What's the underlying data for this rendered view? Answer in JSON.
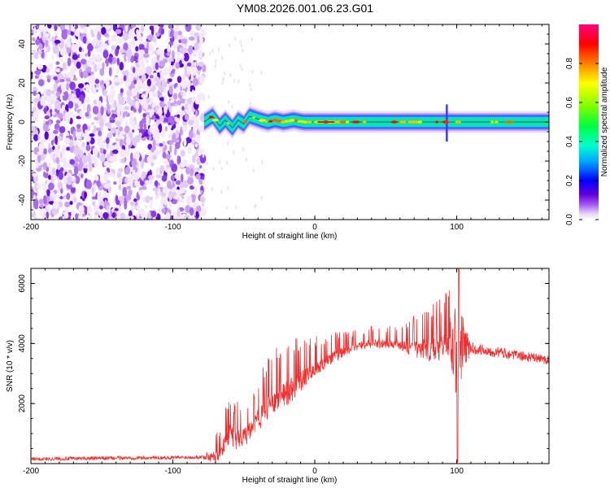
{
  "title": "YM08.2026.001.06.23.G01",
  "chart_data": [
    {
      "type": "heatmap",
      "name": "spectrogram",
      "xlabel": "Height of straight line (km)",
      "ylabel": "Frequency (Hz)",
      "xlim": [
        -200,
        165
      ],
      "ylim": [
        -50,
        50
      ],
      "xticks": [
        -200,
        -100,
        0,
        100
      ],
      "xtick_labels": [
        "-200",
        "-100",
        "0",
        "100"
      ],
      "yticks": [
        -40,
        -20,
        0,
        20,
        40
      ],
      "ytick_labels": [
        "-40",
        "-20",
        "0",
        "20",
        "40"
      ],
      "noise_region_x": [
        -200,
        -78
      ],
      "signal_band": {
        "x_start": -78,
        "x_end": 165,
        "center_freq_points": [
          [
            -78,
            0
          ],
          [
            -72,
            3
          ],
          [
            -67,
            -2
          ],
          [
            -63,
            1
          ],
          [
            -58,
            -3
          ],
          [
            -54,
            1
          ],
          [
            -50,
            -1
          ],
          [
            -46,
            3
          ],
          [
            -42,
            2
          ],
          [
            -38,
            1
          ],
          [
            -33,
            0
          ],
          [
            -28,
            1
          ],
          [
            -22,
            0
          ],
          [
            -15,
            1
          ],
          [
            -8,
            0
          ],
          [
            0,
            0
          ],
          [
            20,
            0
          ],
          [
            60,
            0
          ],
          [
            100,
            0
          ],
          [
            165,
            0
          ]
        ],
        "half_width_hz": 3,
        "spike_at_x": 93,
        "spike_freq_range": [
          -10,
          9
        ]
      },
      "colorbar": {
        "label": "Normalized spectral amplitude",
        "range": [
          0,
          1
        ],
        "ticks": [
          0.0,
          0.2,
          0.4,
          0.6,
          0.8
        ],
        "tick_labels": [
          "0.0",
          "0.2",
          "0.4",
          "0.6",
          "0.8"
        ],
        "colors": [
          "#ffffff",
          "#e8d6f6",
          "#a050f0",
          "#6000d8",
          "#0000ff",
          "#00aaff",
          "#00ffcc",
          "#00ff40",
          "#80ff00",
          "#ffff00",
          "#ff8000",
          "#ff0000",
          "#ff0080"
        ]
      }
    },
    {
      "type": "line",
      "name": "snr",
      "xlabel": "Height of straight line (km)",
      "ylabel": "SNR (10 * v/v)",
      "xlim": [
        -200,
        165
      ],
      "ylim": [
        0,
        6500
      ],
      "xticks": [
        -200,
        -100,
        0,
        100
      ],
      "xtick_labels": [
        "-200",
        "-100",
        "0",
        "100"
      ],
      "yticks": [
        2000,
        4000,
        6000
      ],
      "ytick_labels": [
        "2000",
        "4000",
        "6000"
      ],
      "color": "#f03030",
      "envelope": [
        [
          -200,
          150
        ],
        [
          -150,
          180
        ],
        [
          -100,
          200
        ],
        [
          -80,
          220
        ],
        [
          -70,
          250
        ],
        [
          -65,
          700
        ],
        [
          -60,
          1200
        ],
        [
          -55,
          1000
        ],
        [
          -50,
          1100
        ],
        [
          -45,
          1300
        ],
        [
          -40,
          1700
        ],
        [
          -35,
          2000
        ],
        [
          -30,
          2200
        ],
        [
          -25,
          2400
        ],
        [
          -20,
          2600
        ],
        [
          -15,
          2800
        ],
        [
          -10,
          3000
        ],
        [
          -5,
          3200
        ],
        [
          0,
          3350
        ],
        [
          10,
          3600
        ],
        [
          20,
          3850
        ],
        [
          30,
          4000
        ],
        [
          40,
          4100
        ],
        [
          50,
          4100
        ],
        [
          60,
          4050
        ],
        [
          70,
          4000
        ],
        [
          80,
          4050
        ],
        [
          88,
          4100
        ],
        [
          92,
          4200
        ],
        [
          95,
          4300
        ],
        [
          100,
          3900
        ],
        [
          103,
          3900
        ],
        [
          110,
          3850
        ],
        [
          130,
          3700
        ],
        [
          150,
          3550
        ],
        [
          165,
          3450
        ]
      ],
      "noise_amplitude": [
        [
          -200,
          60
        ],
        [
          -80,
          60
        ],
        [
          -70,
          300
        ],
        [
          -60,
          500
        ],
        [
          -45,
          500
        ],
        [
          -30,
          700
        ],
        [
          -20,
          700
        ],
        [
          0,
          400
        ],
        [
          30,
          200
        ],
        [
          60,
          250
        ],
        [
          80,
          600
        ],
        [
          95,
          700
        ],
        [
          100,
          2000
        ],
        [
          103,
          1200
        ],
        [
          110,
          200
        ],
        [
          165,
          150
        ]
      ],
      "dropout": {
        "x": 100.5,
        "value": 50
      },
      "peak": {
        "x": 101.5,
        "value": 6500
      }
    }
  ]
}
